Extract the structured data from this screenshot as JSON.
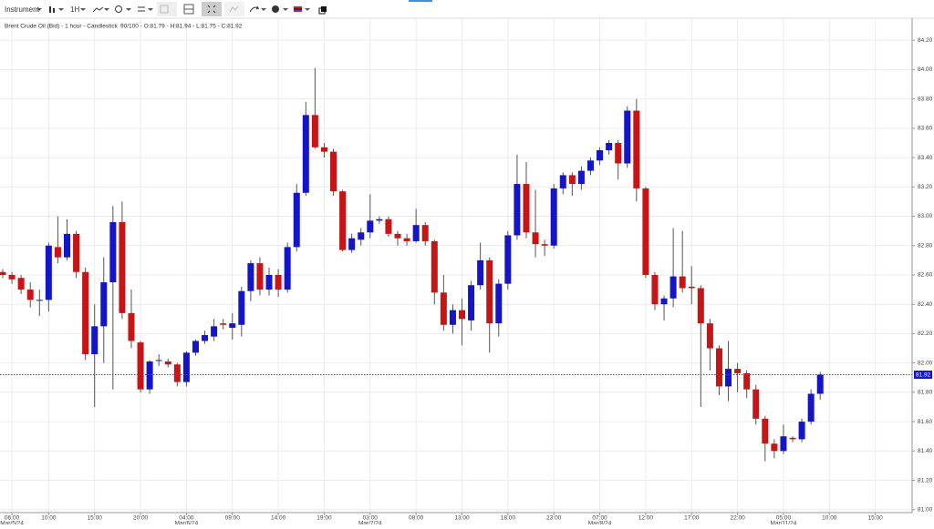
{
  "toolbar": {
    "instrument": "Instrument",
    "interval": "1H"
  },
  "chart_data": {
    "type": "candlestick",
    "title": "Brent Crude Oil (Bid) - 1 hour - Candlestick",
    "ohlc_text": "90/100 - O:81.79 - H:81.94 - L:81.75 - C:81.92",
    "up_color": "#1414c8",
    "down_color": "#c81414",
    "grid": true,
    "categories": [
      null,
      "06:00",
      null,
      null,
      null,
      "10:00",
      null,
      null,
      null,
      null,
      "15:00",
      null,
      null,
      null,
      null,
      "20:00",
      null,
      null,
      null,
      null,
      "04:00",
      null,
      null,
      null,
      null,
      "09:00",
      null,
      null,
      null,
      null,
      "14:00",
      null,
      null,
      null,
      null,
      "19:00",
      null,
      null,
      null,
      null,
      "03:00",
      null,
      null,
      null,
      null,
      "08:00",
      null,
      null,
      null,
      null,
      "13:00",
      null,
      null,
      null,
      null,
      "18:00",
      null,
      null,
      null,
      null,
      "23:00",
      null,
      null,
      null,
      null,
      "07:00",
      null,
      null,
      null,
      null,
      "12:00",
      null,
      null,
      null,
      null,
      "17:00",
      null,
      null,
      null,
      null,
      "22:00",
      null,
      null,
      null,
      null,
      "05:00",
      null,
      null,
      null,
      null,
      "10:00",
      null,
      null,
      null,
      null,
      "15:00"
    ],
    "category_dates": [
      null,
      "Mar/5/24",
      null,
      null,
      null,
      null,
      null,
      null,
      null,
      null,
      null,
      null,
      null,
      null,
      null,
      null,
      null,
      null,
      null,
      null,
      "Mar/6/24",
      null,
      null,
      null,
      null,
      null,
      null,
      null,
      null,
      null,
      null,
      null,
      null,
      null,
      null,
      null,
      null,
      null,
      null,
      null,
      "Mar/7/24",
      null,
      null,
      null,
      null,
      null,
      null,
      null,
      null,
      null,
      null,
      null,
      null,
      null,
      null,
      null,
      null,
      null,
      null,
      null,
      null,
      null,
      null,
      null,
      null,
      "Mar/8/24",
      null,
      null,
      null,
      null,
      null,
      null,
      null,
      null,
      null,
      null,
      null,
      null,
      null,
      null,
      null,
      null,
      null,
      null,
      null,
      "Mar/11/24",
      null,
      null,
      null,
      null,
      null,
      null,
      null,
      null,
      null,
      null
    ],
    "open": [
      82.62,
      82.6,
      82.58,
      82.5,
      82.43,
      82.43,
      82.79,
      82.72,
      82.88,
      82.62,
      82.06,
      82.25,
      82.55,
      82.96,
      82.34,
      82.14,
      81.82,
      82.02,
      82.01,
      81.99,
      81.87,
      82.07,
      82.15,
      82.18,
      82.27,
      82.24,
      82.26,
      82.49,
      82.68,
      82.5,
      82.6,
      82.5,
      82.79,
      83.16,
      83.69,
      83.47,
      83.44,
      83.17,
      82.77,
      82.84,
      82.89,
      82.97,
      82.98,
      82.88,
      82.85,
      82.83,
      82.94,
      82.83,
      82.48,
      82.26,
      82.36,
      82.29,
      82.53,
      82.7,
      82.27,
      82.54,
      82.87,
      83.22,
      82.89,
      82.81,
      82.8,
      83.19,
      83.28,
      83.22,
      83.31,
      83.38,
      83.45,
      83.5,
      83.36,
      83.72,
      83.19,
      82.6,
      82.4,
      82.44,
      82.59,
      82.52,
      82.51,
      82.27,
      82.1,
      81.84,
      81.96,
      81.93,
      81.82,
      81.62,
      81.45,
      81.4,
      81.49,
      81.48,
      81.6,
      81.79,
      null,
      null,
      null,
      null,
      null,
      null
    ],
    "high": [
      82.64,
      82.62,
      82.6,
      82.55,
      82.5,
      82.82,
      83.0,
      82.98,
      82.9,
      82.65,
      82.4,
      82.72,
      83.07,
      83.1,
      82.5,
      82.15,
      82.02,
      82.06,
      82.03,
      82.0,
      82.08,
      82.16,
      82.22,
      82.3,
      82.3,
      82.34,
      82.52,
      82.7,
      82.72,
      82.65,
      82.64,
      82.82,
      83.22,
      83.78,
      84.01,
      83.5,
      83.46,
      83.18,
      82.88,
      82.92,
      83.15,
      83.0,
      83.0,
      82.9,
      82.88,
      83.05,
      82.96,
      82.84,
      82.6,
      82.4,
      82.44,
      82.56,
      82.82,
      82.72,
      82.57,
      82.9,
      83.42,
      83.37,
      83.18,
      82.84,
      83.22,
      83.3,
      83.3,
      83.34,
      83.4,
      83.47,
      83.52,
      83.52,
      83.75,
      83.8,
      83.2,
      82.62,
      82.46,
      82.92,
      82.9,
      82.66,
      82.53,
      82.3,
      82.12,
      82.15,
      82.0,
      81.95,
      81.85,
      81.64,
      81.48,
      81.58,
      81.5,
      81.62,
      81.82,
      81.94,
      null,
      null,
      null,
      null,
      null,
      null
    ],
    "low": [
      82.58,
      82.54,
      82.47,
      82.38,
      82.32,
      82.35,
      82.68,
      82.7,
      82.58,
      82.02,
      81.7,
      82.0,
      81.82,
      82.3,
      82.1,
      81.8,
      81.79,
      81.98,
      81.97,
      81.84,
      81.84,
      82.05,
      82.13,
      82.15,
      82.23,
      82.16,
      82.18,
      82.42,
      82.46,
      82.46,
      82.45,
      82.48,
      82.76,
      83.14,
      83.46,
      83.4,
      83.14,
      82.76,
      82.75,
      82.8,
      82.85,
      82.95,
      82.86,
      82.8,
      82.8,
      82.82,
      82.8,
      82.4,
      82.22,
      82.2,
      82.12,
      82.22,
      82.5,
      82.07,
      82.18,
      82.5,
      82.84,
      82.85,
      82.72,
      82.73,
      82.78,
      83.15,
      83.14,
      83.18,
      83.28,
      83.35,
      83.42,
      83.25,
      83.33,
      83.1,
      82.58,
      82.36,
      82.29,
      82.38,
      82.48,
      82.4,
      81.7,
      81.95,
      81.78,
      81.74,
      81.8,
      81.76,
      81.58,
      81.33,
      81.35,
      81.38,
      81.46,
      81.46,
      81.58,
      81.75,
      null,
      null,
      null,
      null,
      null,
      null
    ],
    "close": [
      82.6,
      82.57,
      82.5,
      82.43,
      82.43,
      82.8,
      82.72,
      82.88,
      82.62,
      82.06,
      82.25,
      82.55,
      82.96,
      82.34,
      82.15,
      81.82,
      82.01,
      82.02,
      81.99,
      81.87,
      82.07,
      82.15,
      82.19,
      82.25,
      82.26,
      82.27,
      82.49,
      82.68,
      82.5,
      82.6,
      82.5,
      82.79,
      83.16,
      83.69,
      83.47,
      83.44,
      83.17,
      82.77,
      82.85,
      82.89,
      82.97,
      82.98,
      82.88,
      82.85,
      82.83,
      82.94,
      82.83,
      82.48,
      82.26,
      82.36,
      82.3,
      82.53,
      82.7,
      82.27,
      82.54,
      82.87,
      83.22,
      82.89,
      82.81,
      82.8,
      83.19,
      83.28,
      83.22,
      83.31,
      83.38,
      83.45,
      83.5,
      83.36,
      83.72,
      83.19,
      82.6,
      82.4,
      82.44,
      82.59,
      82.51,
      82.51,
      82.27,
      82.1,
      81.84,
      81.96,
      81.93,
      81.82,
      81.62,
      81.45,
      81.4,
      81.5,
      81.48,
      81.6,
      81.79,
      81.92,
      null,
      null,
      null,
      null,
      null,
      null
    ],
    "last_price": 81.92,
    "ylim": [
      80.98,
      84.35
    ],
    "yticks": [
      {
        "value": 81,
        "label": "81.00"
      },
      {
        "value": 81.2,
        "label": "81.20"
      },
      {
        "value": 81.4,
        "label": "81.40"
      },
      {
        "value": 81.6,
        "label": "81.60"
      },
      {
        "value": 81.8,
        "label": "81.80"
      },
      {
        "value": 82,
        "label": "82.00"
      },
      {
        "value": 82.2,
        "label": "82.20"
      },
      {
        "value": 82.4,
        "label": "82.40"
      },
      {
        "value": 82.6,
        "label": "82.60"
      },
      {
        "value": 82.8,
        "label": "82.80"
      },
      {
        "value": 83,
        "label": "83.00"
      },
      {
        "value": 83.2,
        "label": "83.20"
      },
      {
        "value": 83.4,
        "label": "83.40"
      },
      {
        "value": 83.6,
        "label": "83.60"
      },
      {
        "value": 83.8,
        "label": "83.80"
      },
      {
        "value": 84,
        "label": "84.00"
      },
      {
        "value": 84.2,
        "label": "84.20"
      }
    ]
  }
}
